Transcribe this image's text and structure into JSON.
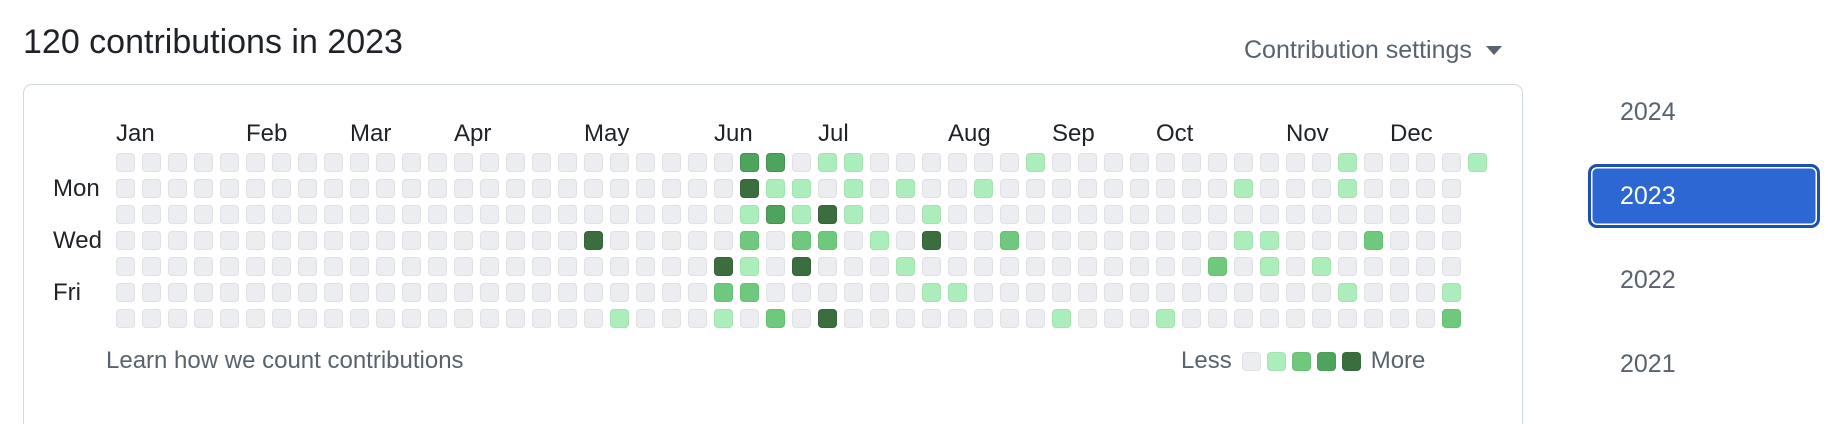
{
  "header": {
    "title": "120 contributions in 2023",
    "settings_label": "Contribution settings"
  },
  "graph": {
    "months": [
      "Jan",
      "Feb",
      "Mar",
      "Apr",
      "May",
      "Jun",
      "Jul",
      "Aug",
      "Sep",
      "Oct",
      "Nov",
      "Dec"
    ],
    "month_start_weeks": [
      0,
      5,
      9,
      13,
      18,
      23,
      27,
      32,
      36,
      40,
      45,
      49
    ],
    "days": [
      {
        "label": "Mon",
        "row": 1
      },
      {
        "label": "Wed",
        "row": 3
      },
      {
        "label": "Fri",
        "row": 5
      }
    ],
    "weeks": 53,
    "first_day_offset": 0,
    "total_days": 365,
    "active_cells": [
      {
        "w": 24,
        "d": 0,
        "l": 3
      },
      {
        "w": 25,
        "d": 0,
        "l": 3
      },
      {
        "w": 27,
        "d": 0,
        "l": 1
      },
      {
        "w": 28,
        "d": 0,
        "l": 1
      },
      {
        "w": 35,
        "d": 0,
        "l": 1
      },
      {
        "w": 47,
        "d": 0,
        "l": 1
      },
      {
        "w": 52,
        "d": 0,
        "l": 1
      },
      {
        "w": 24,
        "d": 1,
        "l": 4
      },
      {
        "w": 25,
        "d": 1,
        "l": 1
      },
      {
        "w": 26,
        "d": 1,
        "l": 1
      },
      {
        "w": 28,
        "d": 1,
        "l": 1
      },
      {
        "w": 30,
        "d": 1,
        "l": 1
      },
      {
        "w": 33,
        "d": 1,
        "l": 1
      },
      {
        "w": 43,
        "d": 1,
        "l": 1
      },
      {
        "w": 47,
        "d": 1,
        "l": 1
      },
      {
        "w": 24,
        "d": 2,
        "l": 1
      },
      {
        "w": 25,
        "d": 2,
        "l": 3
      },
      {
        "w": 26,
        "d": 2,
        "l": 1
      },
      {
        "w": 27,
        "d": 2,
        "l": 4
      },
      {
        "w": 28,
        "d": 2,
        "l": 1
      },
      {
        "w": 31,
        "d": 2,
        "l": 1
      },
      {
        "w": 18,
        "d": 3,
        "l": 4
      },
      {
        "w": 24,
        "d": 3,
        "l": 2
      },
      {
        "w": 26,
        "d": 3,
        "l": 2
      },
      {
        "w": 27,
        "d": 3,
        "l": 2
      },
      {
        "w": 29,
        "d": 3,
        "l": 1
      },
      {
        "w": 31,
        "d": 3,
        "l": 4
      },
      {
        "w": 34,
        "d": 3,
        "l": 2
      },
      {
        "w": 43,
        "d": 3,
        "l": 1
      },
      {
        "w": 44,
        "d": 3,
        "l": 1
      },
      {
        "w": 48,
        "d": 3,
        "l": 2
      },
      {
        "w": 23,
        "d": 4,
        "l": 4
      },
      {
        "w": 24,
        "d": 4,
        "l": 1
      },
      {
        "w": 26,
        "d": 4,
        "l": 4
      },
      {
        "w": 30,
        "d": 4,
        "l": 1
      },
      {
        "w": 42,
        "d": 4,
        "l": 2
      },
      {
        "w": 44,
        "d": 4,
        "l": 1
      },
      {
        "w": 46,
        "d": 4,
        "l": 1
      },
      {
        "w": 23,
        "d": 5,
        "l": 2
      },
      {
        "w": 24,
        "d": 5,
        "l": 2
      },
      {
        "w": 31,
        "d": 5,
        "l": 1
      },
      {
        "w": 32,
        "d": 5,
        "l": 1
      },
      {
        "w": 47,
        "d": 5,
        "l": 1
      },
      {
        "w": 51,
        "d": 5,
        "l": 1
      },
      {
        "w": 19,
        "d": 6,
        "l": 1
      },
      {
        "w": 23,
        "d": 6,
        "l": 1
      },
      {
        "w": 25,
        "d": 6,
        "l": 2
      },
      {
        "w": 27,
        "d": 6,
        "l": 4
      },
      {
        "w": 36,
        "d": 6,
        "l": 1
      },
      {
        "w": 40,
        "d": 6,
        "l": 1
      },
      {
        "w": 51,
        "d": 6,
        "l": 2
      }
    ],
    "level_colors": [
      "#ebedf0",
      "#aceebb",
      "#6fc97c",
      "#4ea35d",
      "#3b6e3f"
    ],
    "learn_link": "Learn how we count contributions",
    "legend": {
      "less": "Less",
      "more": "More"
    }
  },
  "years": [
    {
      "label": "2024",
      "selected": false
    },
    {
      "label": "2023",
      "selected": true
    },
    {
      "label": "2022",
      "selected": false
    },
    {
      "label": "2021",
      "selected": false
    }
  ]
}
